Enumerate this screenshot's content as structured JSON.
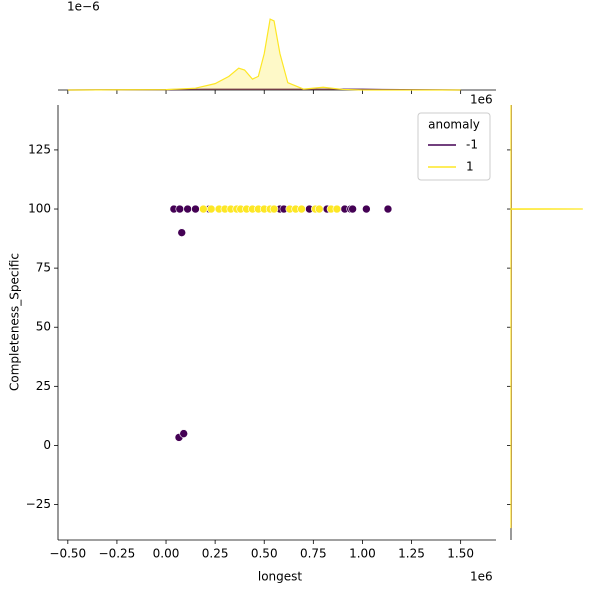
{
  "chart_data": {
    "type": "scatter",
    "xlabel": "longest",
    "ylabel": "Completeness_Specific",
    "x_offset_label": "1e6",
    "density_offset_label": "1e−6",
    "xlim": [
      -0.55,
      1.68
    ],
    "ylim": [
      -40,
      144
    ],
    "xticks": [
      {
        "value": -0.5,
        "label": "−0.50"
      },
      {
        "value": -0.25,
        "label": "−0.25"
      },
      {
        "value": 0,
        "label": "0.00"
      },
      0.25,
      {
        "value": 0.5,
        "label": "0.50"
      },
      0.75,
      {
        "value": 1,
        "label": "1.00"
      },
      1.25,
      {
        "value": 1.5,
        "label": "1.50"
      }
    ],
    "yticks": [
      {
        "value": -25,
        "label": "−25"
      },
      0,
      25,
      50,
      75,
      100,
      125
    ],
    "legend_title": "anomaly",
    "legend": "upper right",
    "series": [
      {
        "name": "-1",
        "color": "#440154",
        "x": [
          0.04,
          0.07,
          0.11,
          0.15,
          0.22,
          0.58,
          0.6,
          0.73,
          0.82,
          0.91,
          0.94,
          0.95,
          1.02,
          1.13,
          0.08,
          0.066,
          0.09
        ],
        "y": [
          100,
          100,
          100,
          100,
          100,
          100,
          100,
          100,
          100,
          100,
          100,
          100,
          100,
          100,
          90,
          3.4,
          5
        ]
      },
      {
        "name": "1",
        "color": "#fde725",
        "x": [
          0.19,
          0.23,
          0.27,
          0.3,
          0.33,
          0.36,
          0.38,
          0.41,
          0.44,
          0.47,
          0.5,
          0.53,
          0.55,
          0.63,
          0.66,
          0.69,
          0.76,
          0.78,
          0.84,
          0.87
        ],
        "y": [
          100,
          100,
          100,
          100,
          100,
          100,
          100,
          100,
          100,
          100,
          100,
          100,
          100,
          100,
          100,
          100,
          100,
          100,
          100,
          100
        ]
      }
    ],
    "x_density": {
      "ylim": [
        0,
        4.4
      ],
      "series": [
        {
          "color": "#440154",
          "x": [
            -0.5,
            0,
            0.2,
            0.5,
            0.8,
            1.0,
            1.2,
            1.5
          ],
          "values": [
            0,
            0.02,
            0.04,
            0.04,
            0.04,
            0.04,
            0.02,
            0
          ]
        },
        {
          "color": "#fde725",
          "x": [
            -0.5,
            0,
            0.15,
            0.25,
            0.32,
            0.37,
            0.4,
            0.44,
            0.47,
            0.5,
            0.53,
            0.55,
            0.58,
            0.62,
            0.7,
            0.8,
            0.9,
            1.0,
            1.5
          ],
          "values": [
            0,
            0.02,
            0.1,
            0.35,
            0.75,
            1.2,
            1.1,
            0.6,
            0.75,
            2.0,
            3.9,
            3.8,
            2.0,
            0.4,
            0.05,
            0.15,
            0.03,
            0,
            0
          ]
        }
      ]
    },
    "y_density": {
      "xlim": [
        0,
        1.1
      ],
      "series": [
        {
          "color": "#440154",
          "y": [
            -35,
            0,
            50,
            100,
            144
          ],
          "values": [
            0.003,
            0.004,
            0.003,
            0.004,
            0.003
          ]
        },
        {
          "color": "#fde725",
          "y": [
            -35,
            99.9,
            100,
            100.1,
            144
          ],
          "values": [
            0,
            0,
            1,
            0,
            0
          ]
        }
      ]
    }
  }
}
